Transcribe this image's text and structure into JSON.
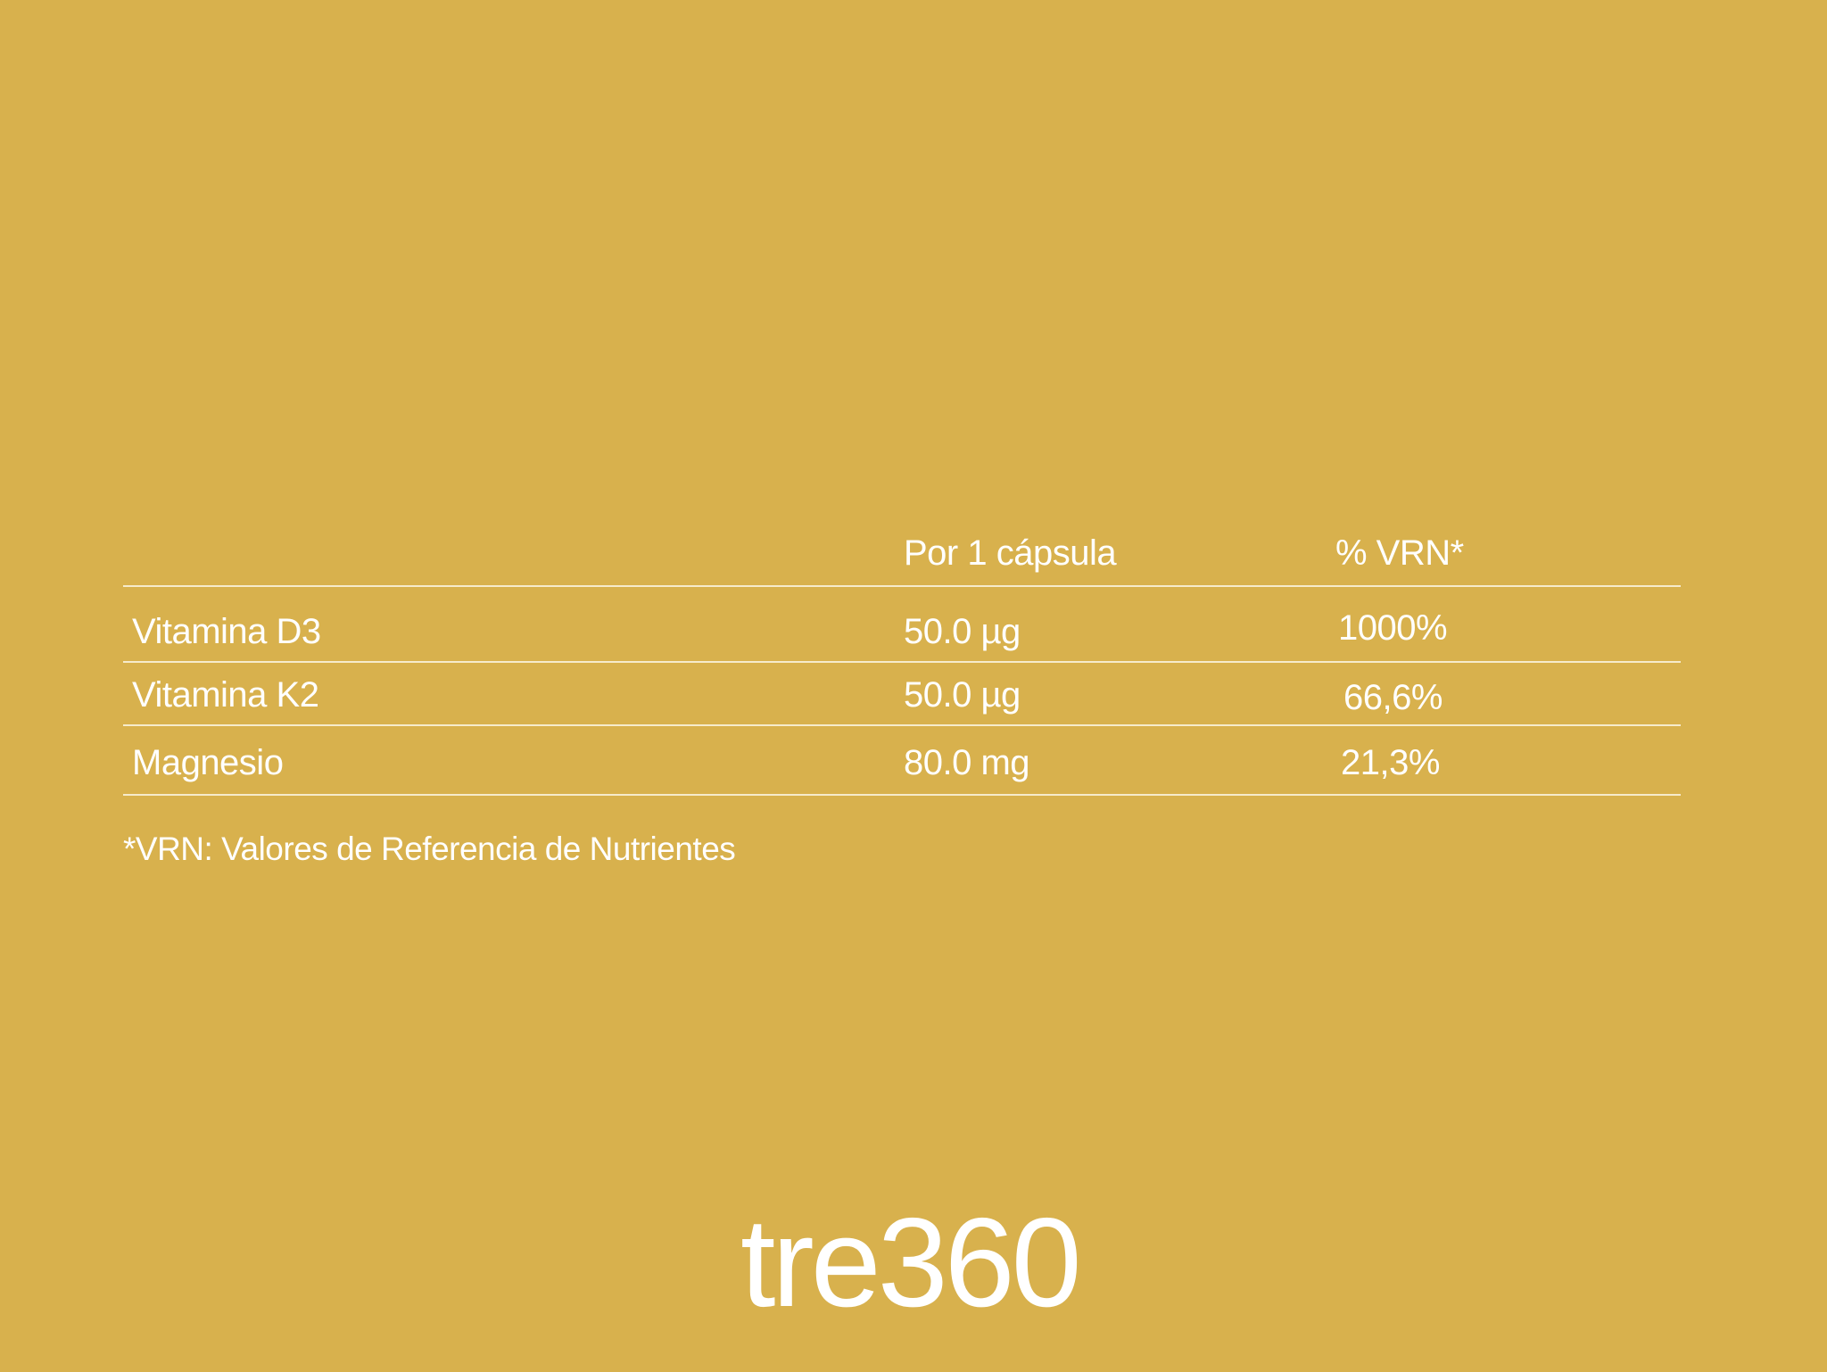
{
  "table": {
    "headers": [
      "",
      "Por 1 cápsula",
      "% VRN*"
    ],
    "rows": [
      {
        "nutrient": "Vitamina D3",
        "amount": "50.0 µg",
        "vrn": "1000%"
      },
      {
        "nutrient": "Vitamina K2",
        "amount": "50.0 µg",
        "vrn": "66,6%"
      },
      {
        "nutrient": "Magnesio",
        "amount": "80.0 mg",
        "vrn": "21,3%"
      }
    ]
  },
  "footnote": "*VRN: Valores de Referencia de Nutrientes",
  "brand": {
    "logo_text": "tre360"
  },
  "colors": {
    "background": "#D8B14D",
    "text": "#FFFFFF"
  }
}
